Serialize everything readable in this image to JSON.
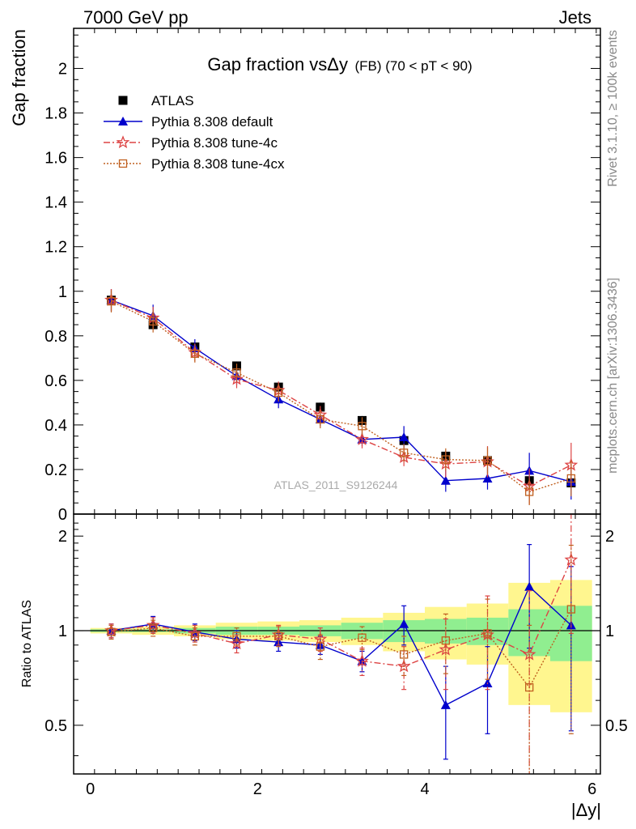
{
  "header": {
    "left": "7000 GeV pp",
    "right": "Jets"
  },
  "side_labels": {
    "rivet": "Rivet 3.1.10, ≥ 100k events",
    "mcplots": "mcplots.cern.ch [arXiv:1306.3436]"
  },
  "chart_data": [
    {
      "type": "scatter",
      "panel": "main",
      "title": "Gap fraction vsΔy",
      "title_suffix": "(FB) (70 < pT <  90)",
      "ylabel": "Gap fraction",
      "watermark": "ATLAS_2011_S9126244",
      "xlim": [
        -0.2,
        6.1
      ],
      "ylim": [
        0,
        2.18
      ],
      "x_ticks": [
        0,
        2,
        4,
        6
      ],
      "y_ticks": [
        0,
        0.2,
        0.4,
        0.6,
        0.8,
        1,
        1.2,
        1.4,
        1.6,
        1.8,
        2
      ],
      "y_tick_labels": [
        "0",
        "0.2",
        "0.4",
        "0.6",
        "0.8",
        "1",
        "1.2",
        "1.4",
        "1.6",
        "1.8",
        "2"
      ],
      "legend_position": "top-left",
      "x": [
        0.25,
        0.75,
        1.25,
        1.75,
        2.25,
        2.75,
        3.25,
        3.75,
        4.25,
        4.75,
        5.25,
        5.75
      ],
      "series": [
        {
          "name": "ATLAS",
          "color": "#000000",
          "marker": "square",
          "line": "none",
          "values": [
            0.96,
            0.85,
            0.75,
            0.665,
            0.57,
            0.48,
            0.42,
            0.33,
            0.26,
            0.24,
            0.15,
            0.14
          ],
          "errors": [
            0.02,
            0.02,
            0.02,
            0.02,
            0.02,
            0.02,
            0.02,
            0.02,
            0.02,
            0.02,
            0.02,
            0.02
          ]
        },
        {
          "name": "Pythia 8.308 default",
          "color": "#0000cc",
          "marker": "triangle",
          "line": "solid",
          "values": [
            0.96,
            0.89,
            0.745,
            0.62,
            0.515,
            0.425,
            0.335,
            0.345,
            0.15,
            0.16,
            0.195,
            0.145
          ],
          "errors": [
            0.05,
            0.05,
            0.04,
            0.04,
            0.04,
            0.03,
            0.03,
            0.05,
            0.05,
            0.05,
            0.08,
            0.08
          ]
        },
        {
          "name": "Pythia 8.308 tune-4c",
          "color": "#dd4444",
          "marker": "star",
          "line": "dashdot",
          "values": [
            0.96,
            0.88,
            0.725,
            0.605,
            0.555,
            0.445,
            0.335,
            0.255,
            0.225,
            0.235,
            0.125,
            0.22
          ],
          "errors": [
            0.05,
            0.05,
            0.04,
            0.04,
            0.04,
            0.04,
            0.04,
            0.04,
            0.06,
            0.07,
            0.08,
            0.1
          ]
        },
        {
          "name": "Pythia 8.308 tune-4cx",
          "color": "#c06020",
          "marker": "open-square",
          "line": "dotted",
          "values": [
            0.955,
            0.865,
            0.72,
            0.635,
            0.545,
            0.425,
            0.395,
            0.275,
            0.245,
            0.24,
            0.1,
            0.16
          ],
          "errors": [
            0.05,
            0.05,
            0.04,
            0.04,
            0.04,
            0.04,
            0.04,
            0.04,
            0.05,
            0.06,
            0.06,
            0.08
          ]
        }
      ]
    },
    {
      "type": "scatter",
      "panel": "ratio",
      "ylabel": "Ratio to ATLAS",
      "xlabel": "|Δy|",
      "xlim": [
        -0.2,
        6.1
      ],
      "ylim": [
        0.35,
        2.35
      ],
      "y_scale": "log",
      "x_ticks": [
        0,
        2,
        4,
        6
      ],
      "x_tick_labels": [
        "0",
        "2",
        "4",
        "6"
      ],
      "y_ticks": [
        0.5,
        1,
        2
      ],
      "y_tick_labels": [
        "0.5",
        "1",
        "2"
      ],
      "x": [
        0.25,
        0.75,
        1.25,
        1.75,
        2.25,
        2.75,
        3.25,
        3.75,
        4.25,
        4.75,
        5.25,
        5.75
      ],
      "bands": {
        "stat_color": "#90ee90",
        "total_color": "#fff68f",
        "stat_halfwidth": [
          0.01,
          0.01,
          0.02,
          0.03,
          0.03,
          0.04,
          0.06,
          0.08,
          0.09,
          0.1,
          0.17,
          0.2
        ],
        "total_halfwidth": [
          0.02,
          0.03,
          0.04,
          0.06,
          0.07,
          0.08,
          0.1,
          0.14,
          0.19,
          0.22,
          0.42,
          0.45
        ]
      },
      "series": [
        {
          "name": "Pythia 8.308 default",
          "color": "#0000cc",
          "values": [
            1.0,
            1.05,
            0.99,
            0.94,
            0.92,
            0.9,
            0.8,
            1.05,
            0.58,
            0.68,
            1.38,
            1.04
          ],
          "errors": [
            0.05,
            0.06,
            0.06,
            0.06,
            0.06,
            0.06,
            0.06,
            0.15,
            0.19,
            0.21,
            0.5,
            0.56
          ]
        },
        {
          "name": "Pythia 8.308 tune-4c",
          "color": "#dd4444",
          "values": [
            1.0,
            1.04,
            0.98,
            0.91,
            0.97,
            0.94,
            0.8,
            0.77,
            0.87,
            0.97,
            0.84,
            1.68
          ],
          "errors": [
            0.05,
            0.06,
            0.06,
            0.06,
            0.07,
            0.08,
            0.08,
            0.12,
            0.22,
            0.32,
            0.5,
            0.7
          ]
        },
        {
          "name": "Pythia 8.308 tune-4cx",
          "color": "#c06020",
          "values": [
            0.99,
            1.02,
            0.96,
            0.96,
            0.96,
            0.89,
            0.95,
            0.84,
            0.93,
            0.98,
            0.66,
            1.17
          ],
          "errors": [
            0.05,
            0.06,
            0.06,
            0.06,
            0.07,
            0.08,
            0.08,
            0.12,
            0.2,
            0.28,
            0.38,
            0.7
          ]
        }
      ]
    }
  ]
}
